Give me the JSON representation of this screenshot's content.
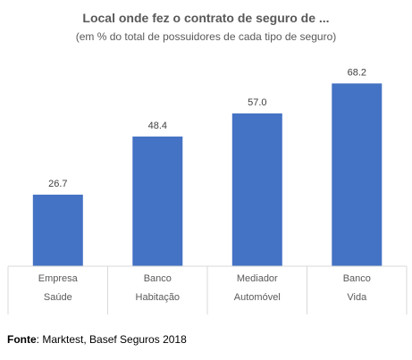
{
  "chart_data": {
    "type": "bar",
    "title": "Local onde fez o contrato de seguro de ...",
    "subtitle": "(em % do total de possuidores de cada tipo de seguro)",
    "categories": [
      [
        "Empresa",
        "Saúde"
      ],
      [
        "Banco",
        "Habitação"
      ],
      [
        "Mediador",
        "Automóvel"
      ],
      [
        "Banco",
        "Vida"
      ]
    ],
    "values": [
      26.7,
      48.4,
      57.0,
      68.2
    ],
    "data_labels": [
      "26.7",
      "48.4",
      "57.0",
      "68.2"
    ],
    "ylim": [
      0,
      80
    ],
    "grid": false,
    "bar_color": "#4472C4",
    "axis_color": "#D9D9D9"
  },
  "source": {
    "label": "Fonte",
    "text": ": Marktest, Basef Seguros 2018"
  }
}
